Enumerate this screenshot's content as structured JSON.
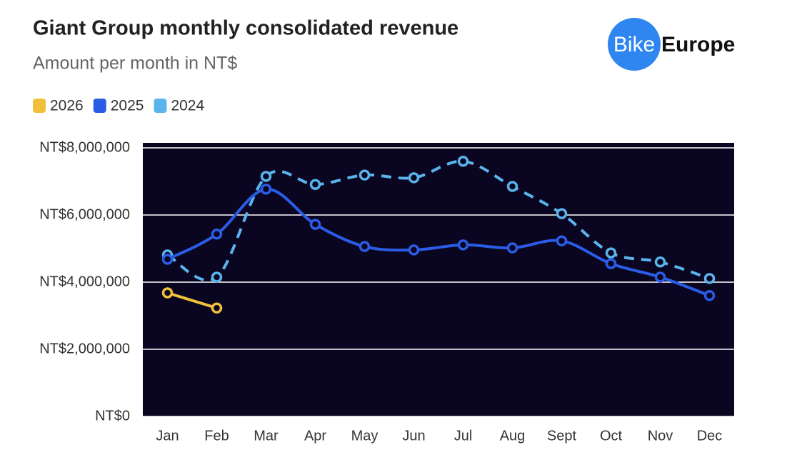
{
  "chart_data": {
    "type": "line",
    "title": "Giant Group monthly consolidated revenue",
    "subtitle": "Amount per month in NT$",
    "logo": {
      "left": "Bike",
      "right": "Europe"
    },
    "categories": [
      "Jan",
      "Feb",
      "Mar",
      "Apr",
      "May",
      "Jun",
      "Jul",
      "Aug",
      "Sept",
      "Oct",
      "Nov",
      "Dec"
    ],
    "series": [
      {
        "name": "2026",
        "color": "#f0c03c",
        "dashed": false,
        "values": [
          3680000,
          3230000,
          null,
          null,
          null,
          null,
          null,
          null,
          null,
          null,
          null,
          null
        ]
      },
      {
        "name": "2025",
        "color": "#2b5ce6",
        "dashed": false,
        "values": [
          4680000,
          5430000,
          6770000,
          5720000,
          5060000,
          4960000,
          5110000,
          5020000,
          5230000,
          4550000,
          4150000,
          3600000
        ]
      },
      {
        "name": "2024",
        "color": "#5ab4ec",
        "dashed": true,
        "values": [
          4810000,
          4150000,
          7150000,
          6910000,
          7190000,
          7110000,
          7600000,
          6850000,
          6040000,
          4870000,
          4600000,
          4110000
        ]
      }
    ],
    "ylim": [
      0,
      8000000
    ],
    "yticks": [
      {
        "value": 0,
        "label": "NT$0"
      },
      {
        "value": 2000000,
        "label": "NT$2,000,000"
      },
      {
        "value": 4000000,
        "label": "NT$4,000,000"
      },
      {
        "value": 6000000,
        "label": "NT$6,000,000"
      },
      {
        "value": 8000000,
        "label": "NT$8,000,000"
      }
    ],
    "grid": true,
    "plot_background": "#0a0520",
    "legend": "top-left"
  }
}
